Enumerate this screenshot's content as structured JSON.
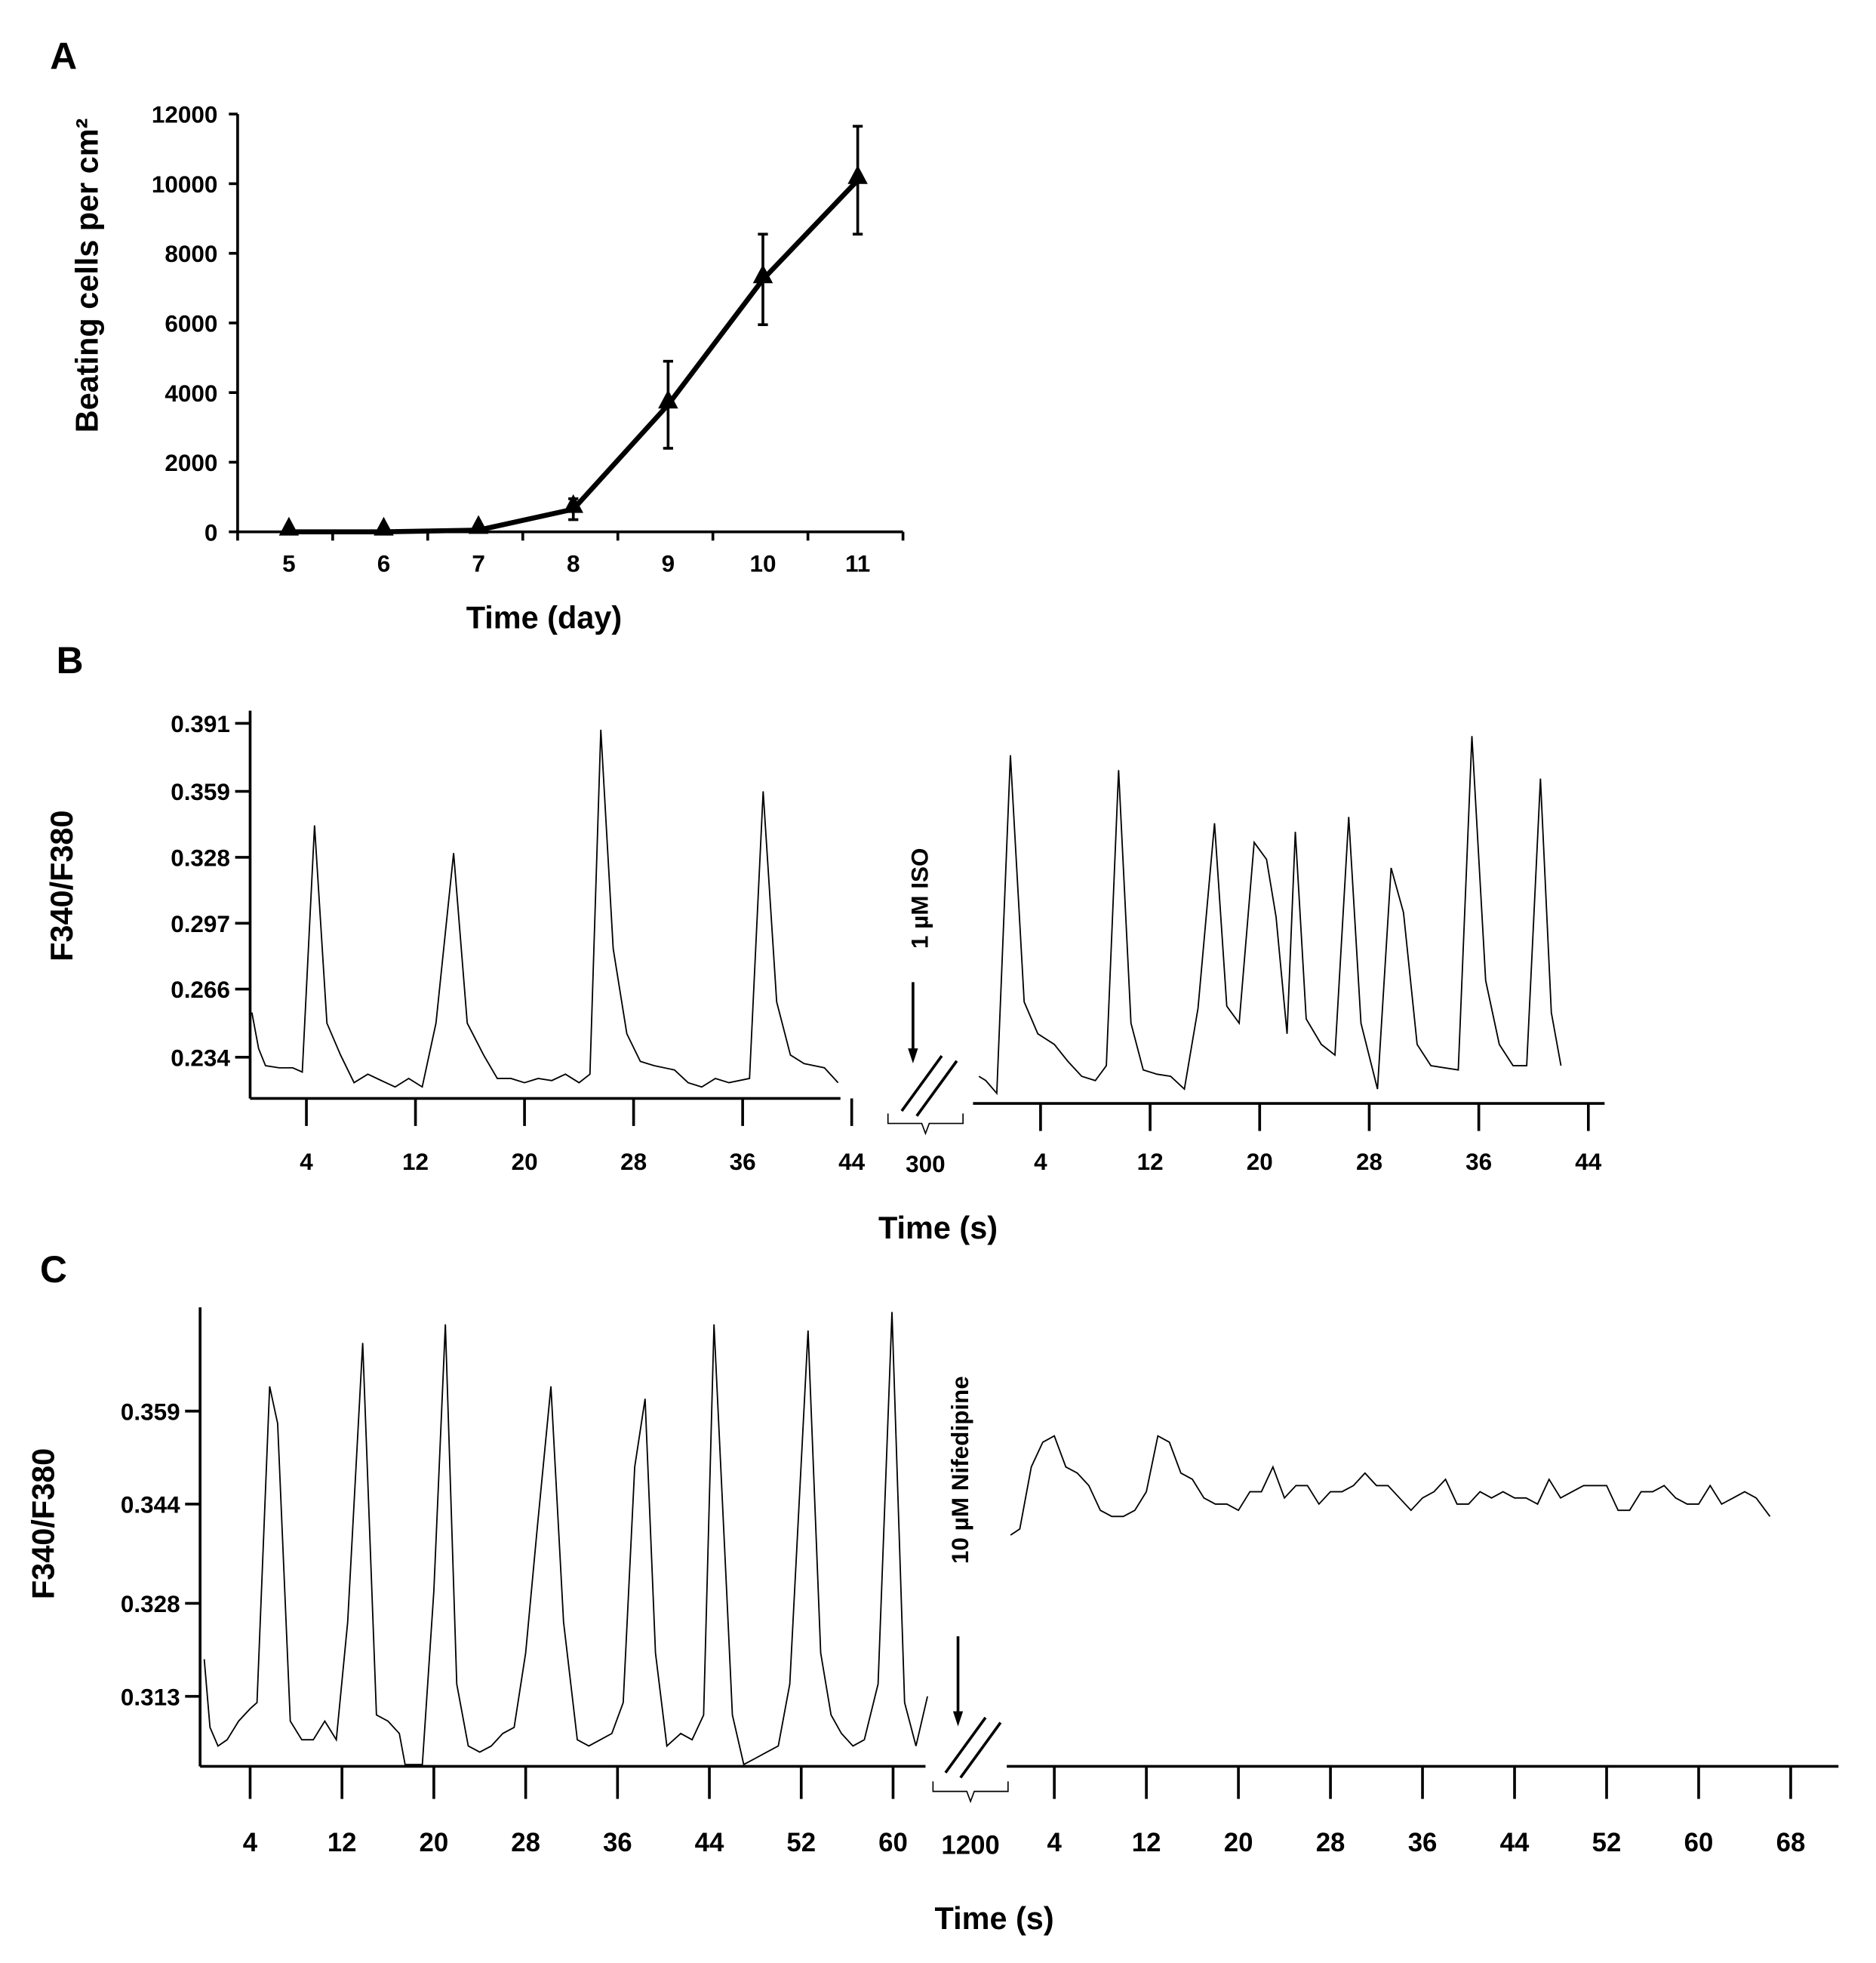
{
  "panel_labels": {
    "a": "A",
    "b": "B",
    "c": "C"
  },
  "chart_data": [
    {
      "panel": "A",
      "type": "line",
      "xlabel": "Time (day)",
      "ylabel": "Beating cells per cm²",
      "xlim": [
        4.5,
        11.5
      ],
      "ylim": [
        0,
        12000
      ],
      "xticks": [
        "5",
        "6",
        "7",
        "8",
        "9",
        "10",
        "11"
      ],
      "yticks": [
        "0",
        "2000",
        "4000",
        "6000",
        "8000",
        "10000",
        "12000"
      ],
      "marker": "triangle",
      "grid": false,
      "x": [
        5,
        6,
        7,
        8,
        9,
        10,
        11
      ],
      "y": [
        0,
        0,
        50,
        650,
        3650,
        7250,
        10100
      ],
      "yerr": [
        0,
        0,
        0,
        300,
        1250,
        1300,
        1550
      ]
    },
    {
      "panel": "B",
      "type": "line",
      "ylabel": "F340/F380",
      "xlabel": "Time (s)",
      "yticks": [
        "0.234",
        "0.266",
        "0.297",
        "0.328",
        "0.359",
        "0.391"
      ],
      "grid": false,
      "axis_break_label": "300",
      "annotation": "1 µM ISO",
      "segments": [
        {
          "xticks": [
            "4",
            "12",
            "20",
            "28",
            "36",
            "44"
          ],
          "points": [
            [
              0,
              0.255
            ],
            [
              0.5,
              0.238
            ],
            [
              1,
              0.23
            ],
            [
              2,
              0.229
            ],
            [
              3,
              0.229
            ],
            [
              3.7,
              0.227
            ],
            [
              4.6,
              0.343
            ],
            [
              5.5,
              0.25
            ],
            [
              6.5,
              0.235
            ],
            [
              7.5,
              0.222
            ],
            [
              8.5,
              0.226
            ],
            [
              9.5,
              0.223
            ],
            [
              10.5,
              0.22
            ],
            [
              11.5,
              0.224
            ],
            [
              12.5,
              0.22
            ],
            [
              13.5,
              0.25
            ],
            [
              14.8,
              0.33
            ],
            [
              15.8,
              0.25
            ],
            [
              17,
              0.235
            ],
            [
              18,
              0.224
            ],
            [
              19,
              0.224
            ],
            [
              20,
              0.222
            ],
            [
              21,
              0.224
            ],
            [
              22,
              0.223
            ],
            [
              23,
              0.226
            ],
            [
              24,
              0.222
            ],
            [
              24.8,
              0.226
            ],
            [
              25.6,
              0.388
            ],
            [
              26.5,
              0.285
            ],
            [
              27.5,
              0.245
            ],
            [
              28.5,
              0.232
            ],
            [
              29.5,
              0.23
            ],
            [
              31,
              0.228
            ],
            [
              32,
              0.222
            ],
            [
              33,
              0.22
            ],
            [
              34,
              0.224
            ],
            [
              35,
              0.222
            ],
            [
              36.5,
              0.224
            ],
            [
              37.5,
              0.359
            ],
            [
              38.5,
              0.26
            ],
            [
              39.5,
              0.235
            ],
            [
              40.5,
              0.231
            ],
            [
              42,
              0.229
            ],
            [
              43,
              0.222
            ]
          ]
        },
        {
          "xticks": [
            "4",
            "12",
            "20",
            "28",
            "36",
            "44"
          ],
          "points": [
            [
              -0.5,
              0.225
            ],
            [
              0,
              0.223
            ],
            [
              0.8,
              0.217
            ],
            [
              1.8,
              0.376
            ],
            [
              2.8,
              0.26
            ],
            [
              3.8,
              0.245
            ],
            [
              5,
              0.24
            ],
            [
              6,
              0.232
            ],
            [
              7,
              0.225
            ],
            [
              8,
              0.223
            ],
            [
              8.8,
              0.23
            ],
            [
              9.7,
              0.369
            ],
            [
              10.6,
              0.25
            ],
            [
              11.5,
              0.228
            ],
            [
              12.5,
              0.226
            ],
            [
              13.5,
              0.225
            ],
            [
              14.5,
              0.219
            ],
            [
              15.5,
              0.257
            ],
            [
              16.7,
              0.344
            ],
            [
              17.6,
              0.258
            ],
            [
              18.5,
              0.25
            ],
            [
              19.6,
              0.335
            ],
            [
              20.5,
              0.327
            ],
            [
              21.2,
              0.3
            ],
            [
              22,
              0.245
            ],
            [
              22.6,
              0.34
            ],
            [
              23.4,
              0.252
            ],
            [
              24.5,
              0.24
            ],
            [
              25.5,
              0.235
            ],
            [
              26.5,
              0.347
            ],
            [
              27.4,
              0.25
            ],
            [
              28.6,
              0.219
            ],
            [
              29.6,
              0.323
            ],
            [
              30.5,
              0.302
            ],
            [
              31.5,
              0.24
            ],
            [
              32.5,
              0.23
            ],
            [
              34.5,
              0.228
            ],
            [
              35.5,
              0.385
            ],
            [
              36.5,
              0.27
            ],
            [
              37.5,
              0.24
            ],
            [
              38.5,
              0.23
            ],
            [
              39.5,
              0.23
            ],
            [
              40.5,
              0.365
            ],
            [
              41.3,
              0.255
            ],
            [
              42,
              0.23
            ]
          ]
        }
      ]
    },
    {
      "panel": "C",
      "type": "line",
      "ylabel": "F340/F380",
      "xlabel": "Time (s)",
      "yticks": [
        "0.313",
        "0.328",
        "0.344",
        "0.359"
      ],
      "grid": false,
      "axis_break_label": "1200",
      "annotation": "10 µM Nifedipine",
      "segments": [
        {
          "xticks": [
            "4",
            "12",
            "20",
            "28",
            "36",
            "44",
            "52",
            "60"
          ],
          "points": [
            [
              0,
              0.319
            ],
            [
              0.5,
              0.308
            ],
            [
              1.2,
              0.305
            ],
            [
              2,
              0.306
            ],
            [
              3,
              0.309
            ],
            [
              4,
              0.311
            ],
            [
              4.6,
              0.312
            ],
            [
              5.7,
              0.363
            ],
            [
              6.4,
              0.357
            ],
            [
              7.5,
              0.309
            ],
            [
              8.5,
              0.306
            ],
            [
              9.5,
              0.306
            ],
            [
              10.5,
              0.309
            ],
            [
              11.5,
              0.306
            ],
            [
              12.5,
              0.325
            ],
            [
              13.8,
              0.37
            ],
            [
              15,
              0.31
            ],
            [
              16,
              0.309
            ],
            [
              17,
              0.307
            ],
            [
              17.5,
              0.302
            ],
            [
              19,
              0.302
            ],
            [
              20,
              0.33
            ],
            [
              21,
              0.373
            ],
            [
              22,
              0.315
            ],
            [
              23,
              0.305
            ],
            [
              24,
              0.304
            ],
            [
              25,
              0.305
            ],
            [
              26,
              0.307
            ],
            [
              27,
              0.308
            ],
            [
              28,
              0.32
            ],
            [
              29,
              0.34
            ],
            [
              30.2,
              0.363
            ],
            [
              31.3,
              0.325
            ],
            [
              32.5,
              0.306
            ],
            [
              33.5,
              0.305
            ],
            [
              34.5,
              0.306
            ],
            [
              35.5,
              0.307
            ],
            [
              36.5,
              0.312
            ],
            [
              37.5,
              0.35
            ],
            [
              38.4,
              0.361
            ],
            [
              39.3,
              0.32
            ],
            [
              40.3,
              0.305
            ],
            [
              41.5,
              0.307
            ],
            [
              42.5,
              0.306
            ],
            [
              43.5,
              0.31
            ],
            [
              44.4,
              0.373
            ],
            [
              45.5,
              0.33
            ],
            [
              46,
              0.31
            ],
            [
              47,
              0.302
            ],
            [
              48,
              0.303
            ],
            [
              49,
              0.304
            ],
            [
              50,
              0.305
            ],
            [
              51,
              0.315
            ],
            [
              52.6,
              0.372
            ],
            [
              53.7,
              0.32
            ],
            [
              54.6,
              0.31
            ],
            [
              55.5,
              0.307
            ],
            [
              56.5,
              0.305
            ],
            [
              57.5,
              0.306
            ],
            [
              58.7,
              0.315
            ],
            [
              59.9,
              0.375
            ],
            [
              61,
              0.312
            ],
            [
              62,
              0.305
            ],
            [
              63,
              0.313
            ]
          ]
        },
        {
          "xticks": [
            "4",
            "12",
            "20",
            "28",
            "36",
            "44",
            "52",
            "60",
            "68"
          ],
          "points": [
            [
              0.2,
              0.339
            ],
            [
              1,
              0.34
            ],
            [
              2,
              0.35
            ],
            [
              3,
              0.354
            ],
            [
              4,
              0.355
            ],
            [
              5,
              0.35
            ],
            [
              6,
              0.349
            ],
            [
              7,
              0.347
            ],
            [
              8,
              0.343
            ],
            [
              9,
              0.342
            ],
            [
              10,
              0.342
            ],
            [
              11,
              0.343
            ],
            [
              12,
              0.346
            ],
            [
              13,
              0.355
            ],
            [
              14,
              0.354
            ],
            [
              15,
              0.349
            ],
            [
              16,
              0.348
            ],
            [
              17,
              0.345
            ],
            [
              18,
              0.344
            ],
            [
              19,
              0.344
            ],
            [
              20,
              0.343
            ],
            [
              21,
              0.346
            ],
            [
              22,
              0.346
            ],
            [
              23,
              0.35
            ],
            [
              24,
              0.345
            ],
            [
              25,
              0.347
            ],
            [
              26,
              0.347
            ],
            [
              27,
              0.344
            ],
            [
              28,
              0.346
            ],
            [
              29,
              0.346
            ],
            [
              30,
              0.347
            ],
            [
              31,
              0.349
            ],
            [
              32,
              0.347
            ],
            [
              33,
              0.347
            ],
            [
              34,
              0.345
            ],
            [
              35,
              0.343
            ],
            [
              36,
              0.345
            ],
            [
              37,
              0.346
            ],
            [
              38,
              0.348
            ],
            [
              39,
              0.344
            ],
            [
              40,
              0.344
            ],
            [
              41,
              0.346
            ],
            [
              42,
              0.345
            ],
            [
              43,
              0.346
            ],
            [
              44,
              0.345
            ],
            [
              45,
              0.345
            ],
            [
              46,
              0.344
            ],
            [
              47,
              0.348
            ],
            [
              48,
              0.345
            ],
            [
              49,
              0.346
            ],
            [
              50,
              0.347
            ],
            [
              51,
              0.347
            ],
            [
              52,
              0.347
            ],
            [
              53,
              0.343
            ],
            [
              54,
              0.343
            ],
            [
              55,
              0.346
            ],
            [
              56,
              0.346
            ],
            [
              57,
              0.347
            ],
            [
              58,
              0.345
            ],
            [
              59,
              0.344
            ],
            [
              60,
              0.344
            ],
            [
              61,
              0.347
            ],
            [
              62,
              0.344
            ],
            [
              63,
              0.345
            ],
            [
              64,
              0.346
            ],
            [
              65,
              0.345
            ],
            [
              66.2,
              0.342
            ]
          ]
        }
      ]
    }
  ]
}
